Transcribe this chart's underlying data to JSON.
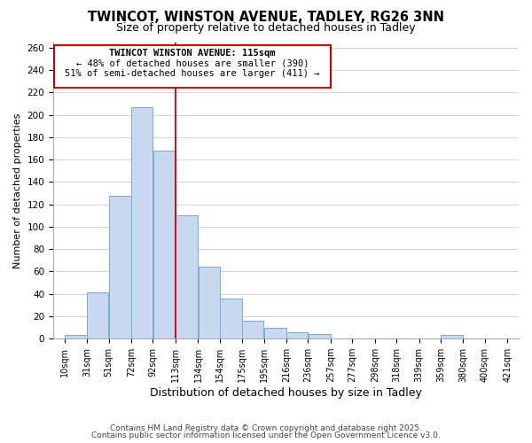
{
  "title": "TWINCOT, WINSTON AVENUE, TADLEY, RG26 3NN",
  "subtitle": "Size of property relative to detached houses in Tadley",
  "xlabel": "Distribution of detached houses by size in Tadley",
  "ylabel": "Number of detached properties",
  "bar_edges": [
    10,
    31,
    51,
    72,
    92,
    113,
    134,
    154,
    175,
    195,
    216,
    236,
    257,
    277,
    298,
    318,
    339,
    359,
    380,
    400,
    421
  ],
  "bar_heights": [
    3,
    41,
    128,
    207,
    168,
    110,
    64,
    36,
    16,
    10,
    6,
    4,
    0,
    0,
    0,
    0,
    0,
    3,
    0,
    0
  ],
  "bar_color": "#c8d8f0",
  "bar_edgecolor": "#7aaad0",
  "ref_line_x": 113,
  "ref_line_color": "#cc0000",
  "ylim": [
    0,
    265
  ],
  "yticks": [
    0,
    20,
    40,
    60,
    80,
    100,
    120,
    140,
    160,
    180,
    200,
    220,
    240,
    260
  ],
  "tick_labels": [
    "10sqm",
    "31sqm",
    "51sqm",
    "72sqm",
    "92sqm",
    "113sqm",
    "134sqm",
    "154sqm",
    "175sqm",
    "195sqm",
    "216sqm",
    "236sqm",
    "257sqm",
    "277sqm",
    "298sqm",
    "318sqm",
    "339sqm",
    "359sqm",
    "380sqm",
    "400sqm",
    "421sqm"
  ],
  "annotation_title": "TWINCOT WINSTON AVENUE: 115sqm",
  "annotation_line1": "← 48% of detached houses are smaller (390)",
  "annotation_line2": "51% of semi-detached houses are larger (411) →",
  "footer1": "Contains HM Land Registry data © Crown copyright and database right 2025.",
  "footer2": "Contains public sector information licensed under the Open Government Licence v3.0.",
  "bg_color": "#ffffff",
  "plot_bg_color": "#ffffff",
  "grid_color": "#cccccc"
}
